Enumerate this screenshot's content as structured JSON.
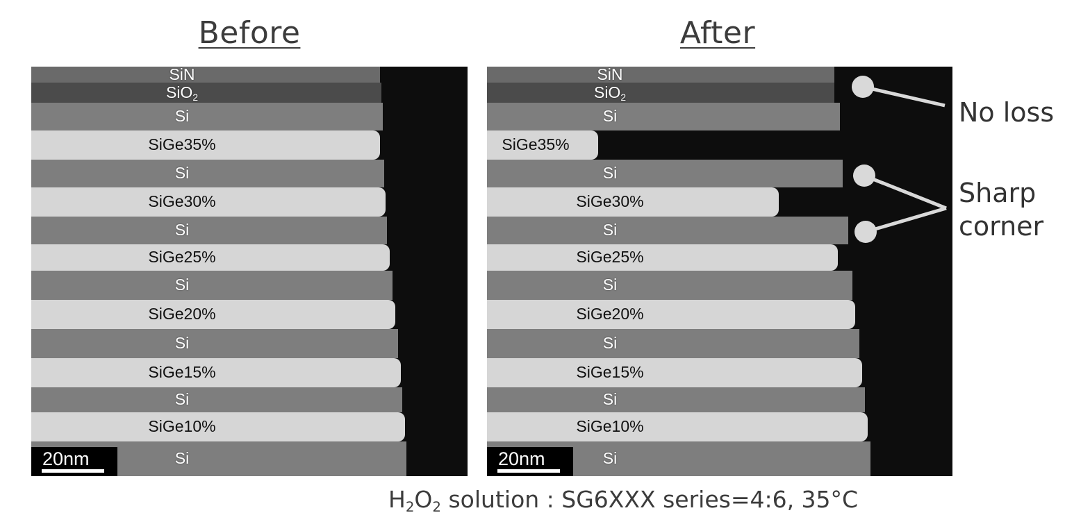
{
  "headings": {
    "before": "Before",
    "after": "After"
  },
  "layers": [
    "SiN",
    "SiO",
    "Si",
    "SiGe35%",
    "Si",
    "SiGe30%",
    "Si",
    "SiGe25%",
    "Si",
    "SiGe20%",
    "Si",
    "SiGe15%",
    "Si",
    "SiGe10%",
    "Si"
  ],
  "sio2_subscript": "2",
  "scale_bar": "20nm",
  "annotations": {
    "no_loss": "No loss",
    "sharp_corner_line1": "Sharp",
    "sharp_corner_line2": "corner"
  },
  "caption": {
    "part1": "H",
    "sub1": "2",
    "part2": "O",
    "sub2": "2",
    "part3": " solution : SG6XXX series=4:6, 35°C"
  },
  "colors": {
    "si": "#7e7e7e",
    "sige": "#d6d6d6",
    "sin": "#6a6a6a",
    "sio2": "#4b4b4b",
    "void": "#0d0d0d",
    "marker": "#d9d9d9"
  }
}
